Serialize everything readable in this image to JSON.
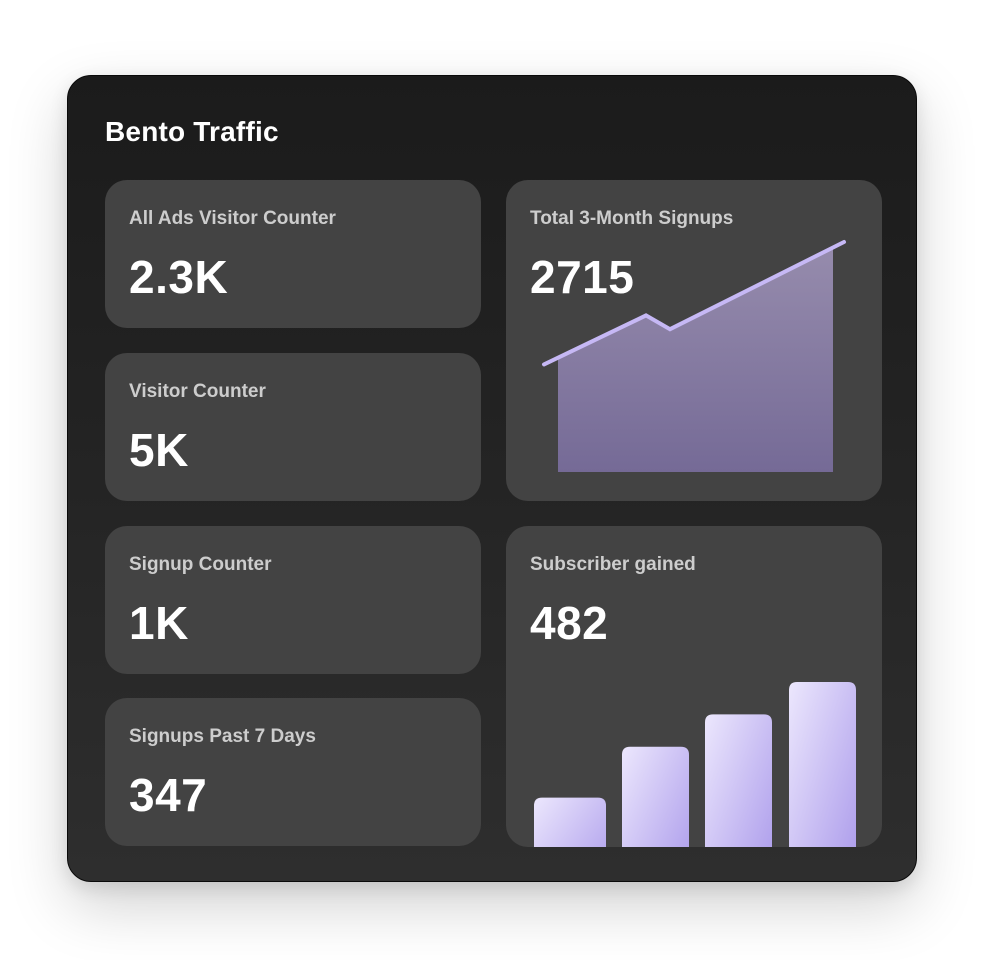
{
  "title": "Bento Traffic",
  "cards": [
    {
      "label": "All Ads Visitor Counter",
      "value": "2.3K"
    },
    {
      "label": "Visitor Counter",
      "value": "5K"
    },
    {
      "label": "Signup Counter",
      "value": "1K"
    },
    {
      "label": "Signups Past 7 Days",
      "value": "347"
    }
  ],
  "signups_card": {
    "label": "Total 3-Month Signups",
    "value": "2715"
  },
  "subscriber_card": {
    "label": "Subscriber gained",
    "value": "482"
  },
  "colors": {
    "accent": "#c6b8f5",
    "card_bg": "#434343",
    "window_bg": "#1e1e1e"
  },
  "chart_data": [
    {
      "type": "area",
      "x": [
        1,
        2,
        3,
        4
      ],
      "values": [
        20,
        52,
        43,
        100
      ],
      "ylim": [
        0,
        100
      ],
      "grid": false,
      "legend": "none"
    },
    {
      "type": "bar",
      "categories": [
        "",
        "",
        "",
        ""
      ],
      "values": [
        43,
        65,
        79,
        93
      ],
      "ylim": [
        0,
        100
      ],
      "grid": false,
      "legend": "none"
    }
  ]
}
